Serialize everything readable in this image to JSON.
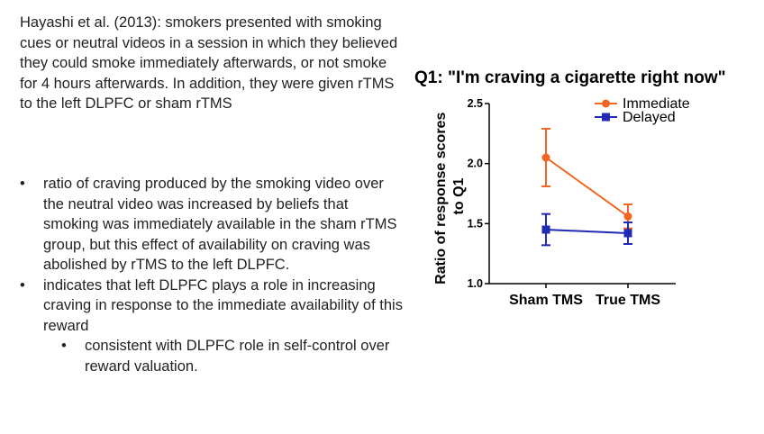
{
  "slide": {
    "intro": "Hayashi et al. (2013): smokers presented with smoking cues or neutral videos in a session in which they believed they could smoke immediately afterwards, or not smoke for 4 hours afterwards. In addition, they were given rTMS to the left DLPFC or sham rTMS",
    "bullets": [
      "ratio of craving produced by the smoking video over the neutral video was increased by beliefs that smoking was immediately available in the sham rTMS group, but this effect of availability on craving was abolished by rTMS to the left DLPFC.",
      "indicates that left DLPFC plays a role in increasing craving in response to the immediate availability of this reward"
    ],
    "sub_bullets": [
      "consistent with DLPFC role in self-control over reward valuation."
    ]
  },
  "chart_data": {
    "type": "line",
    "title": "Q1: \"I'm craving a cigarette right now\"",
    "ylabel": [
      "Ratio of response scores",
      "to Q1"
    ],
    "xlabel": "",
    "categories": [
      "Sham TMS",
      "True TMS"
    ],
    "ylim": [
      1.0,
      2.5
    ],
    "yticks": [
      "1.0",
      "1.5",
      "2.0",
      "2.5"
    ],
    "legend_position": "top-right",
    "grid": false,
    "series": [
      {
        "name": "Immediate",
        "color": "#f26522",
        "marker": "circle",
        "values": [
          2.05,
          1.56
        ],
        "errors": [
          0.24,
          0.1
        ]
      },
      {
        "name": "Delayed",
        "color": "#1f2bb5",
        "marker": "square",
        "values": [
          1.45,
          1.42
        ],
        "errors": [
          0.13,
          0.09
        ]
      }
    ]
  }
}
